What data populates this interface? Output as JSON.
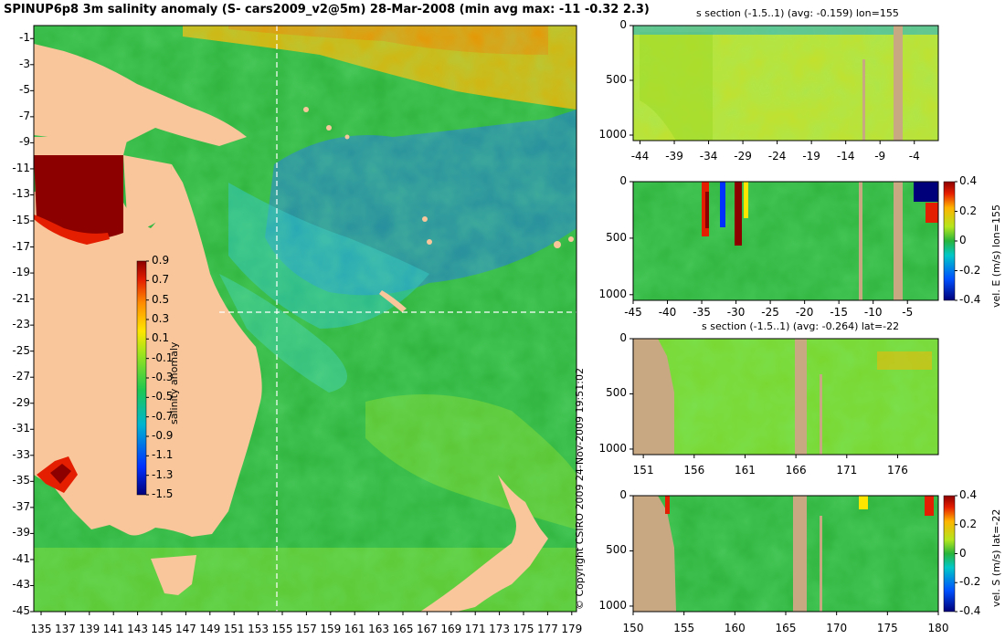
{
  "main_title": "SPINUP6p8 3m salinity anomaly (S- cars2009_v2@5m) 28-Mar-2008 (min avg max: -11 -0.32 2.3)",
  "copyright": "© Copyright CSIRO 2009   24-Nov-2009 19:51:02",
  "colors": {
    "land": "#f9c69b",
    "landSection": "#c8a882",
    "sea": "#2db23b"
  },
  "chart_data": [
    {
      "type": "heatmap",
      "title": "SPINUP6p8 3m salinity anomaly (S- cars2009_v2@5m) 28-Mar-2008 (min avg max: -11 -0.32 2.3)",
      "xlabel": "",
      "ylabel": "",
      "xlim": [
        135,
        180
      ],
      "ylim": [
        -45,
        0
      ],
      "xticks": [
        "135",
        "137",
        "139",
        "141",
        "143",
        "145",
        "147",
        "149",
        "151",
        "153",
        "155",
        "157",
        "159",
        "161",
        "163",
        "165",
        "167",
        "169",
        "171",
        "173",
        "175",
        "177",
        "179"
      ],
      "yticks": [
        "-1",
        "-3",
        "-5",
        "-7",
        "-9",
        "-11",
        "-13",
        "-15",
        "-17",
        "-19",
        "-21",
        "-23",
        "-25",
        "-27",
        "-29",
        "-31",
        "-33",
        "-35",
        "-37",
        "-39",
        "-41",
        "-43",
        "-45"
      ],
      "colorbar": {
        "label": "salinity anomaly",
        "ticks": [
          "0.9",
          "0.7",
          "0.5",
          "0.3",
          "0.1",
          "-0.1",
          "-0.3",
          "-0.5",
          "-0.7",
          "-0.9",
          "-1.1",
          "-1.3",
          "-1.5"
        ],
        "range": [
          -1.5,
          0.9
        ]
      },
      "section_lines": {
        "lon": 155,
        "lat": -22
      }
    },
    {
      "type": "heatmap",
      "title": "s section (-1.5..1) (avg: -0.159) lon=155",
      "xticks": [
        "-44",
        "-39",
        "-34",
        "-29",
        "-24",
        "-19",
        "-14",
        "-9",
        "-4"
      ],
      "yticks": [
        "0",
        "500",
        "1000"
      ],
      "xlim": [
        -45,
        -0.5
      ],
      "ylim": [
        1050,
        0
      ]
    },
    {
      "type": "heatmap",
      "title": "",
      "xticks": [
        "-45",
        "-40",
        "-35",
        "-30",
        "-25",
        "-20",
        "-15",
        "-10",
        "-5"
      ],
      "yticks": [
        "0",
        "500",
        "1000"
      ],
      "xlim": [
        -45,
        -0.5
      ],
      "ylim": [
        1050,
        0
      ],
      "colorbar": {
        "label": "vel. E (m/s) lon=155",
        "ticks": [
          "0.4",
          "0.2",
          "0",
          "-0.2",
          "-0.4"
        ],
        "range": [
          -0.4,
          0.4
        ]
      }
    },
    {
      "type": "heatmap",
      "title": "s section (-1.5..1) (avg: -0.264) lat=-22",
      "xticks": [
        "151",
        "156",
        "161",
        "166",
        "171",
        "176"
      ],
      "yticks": [
        "0",
        "500",
        "1000"
      ],
      "xlim": [
        150,
        180
      ],
      "ylim": [
        1050,
        0
      ]
    },
    {
      "type": "heatmap",
      "title": "",
      "xticks": [
        "150",
        "155",
        "160",
        "165",
        "170",
        "175",
        "180"
      ],
      "yticks": [
        "0",
        "500",
        "1000"
      ],
      "xlim": [
        150,
        180
      ],
      "ylim": [
        1050,
        0
      ],
      "colorbar": {
        "label": "vel. S (m/s) lat=-22",
        "ticks": [
          "0.4",
          "0.2",
          "0",
          "-0.2",
          "-0.4"
        ],
        "range": [
          -0.4,
          0.4
        ]
      }
    }
  ]
}
